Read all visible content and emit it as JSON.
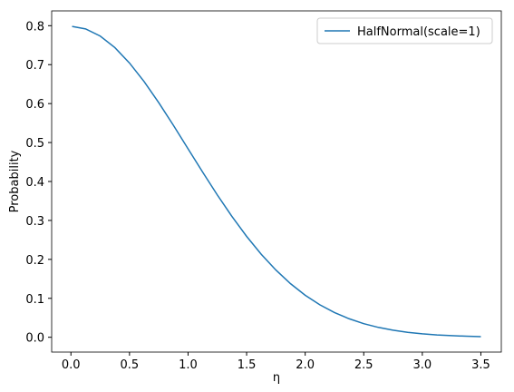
{
  "chart_data": {
    "type": "line",
    "x_label": "η",
    "y_label": "Probability",
    "x": [
      0.01,
      0.125,
      0.25,
      0.375,
      0.5,
      0.625,
      0.75,
      0.875,
      1.0,
      1.125,
      1.25,
      1.375,
      1.5,
      1.625,
      1.75,
      1.875,
      2.0,
      2.125,
      2.25,
      2.375,
      2.5,
      2.625,
      2.75,
      2.875,
      3.0,
      3.125,
      3.25,
      3.375,
      3.5
    ],
    "series": [
      {
        "name": "HalfNormal(scale=1)",
        "color": "#1f77b4",
        "values": [
          0.798,
          0.7917,
          0.7734,
          0.7438,
          0.7041,
          0.6564,
          0.6023,
          0.5441,
          0.4839,
          0.4238,
          0.3653,
          0.3101,
          0.2591,
          0.2131,
          0.1726,
          0.1376,
          0.108,
          0.0835,
          0.0635,
          0.0476,
          0.035,
          0.0254,
          0.0182,
          0.0128,
          0.0089,
          0.006,
          0.0041,
          0.0027,
          0.0017
        ]
      }
    ],
    "xlim": [
      -0.1645,
      3.6745
    ],
    "ylim": [
      -0.038,
      0.838
    ],
    "xticks": [
      {
        "value": 0,
        "label": "0.0"
      },
      0.5,
      {
        "value": 1,
        "label": "1.0"
      },
      1.5,
      {
        "value": 2,
        "label": "2.0"
      },
      2.5,
      {
        "value": 3,
        "label": "3.0"
      },
      3.5
    ],
    "yticks": [
      {
        "value": 0,
        "label": "0.0"
      },
      0.1,
      0.2,
      0.3,
      0.4,
      0.5,
      0.6,
      0.7,
      0.8
    ],
    "grid": false,
    "legend": "upper right"
  }
}
